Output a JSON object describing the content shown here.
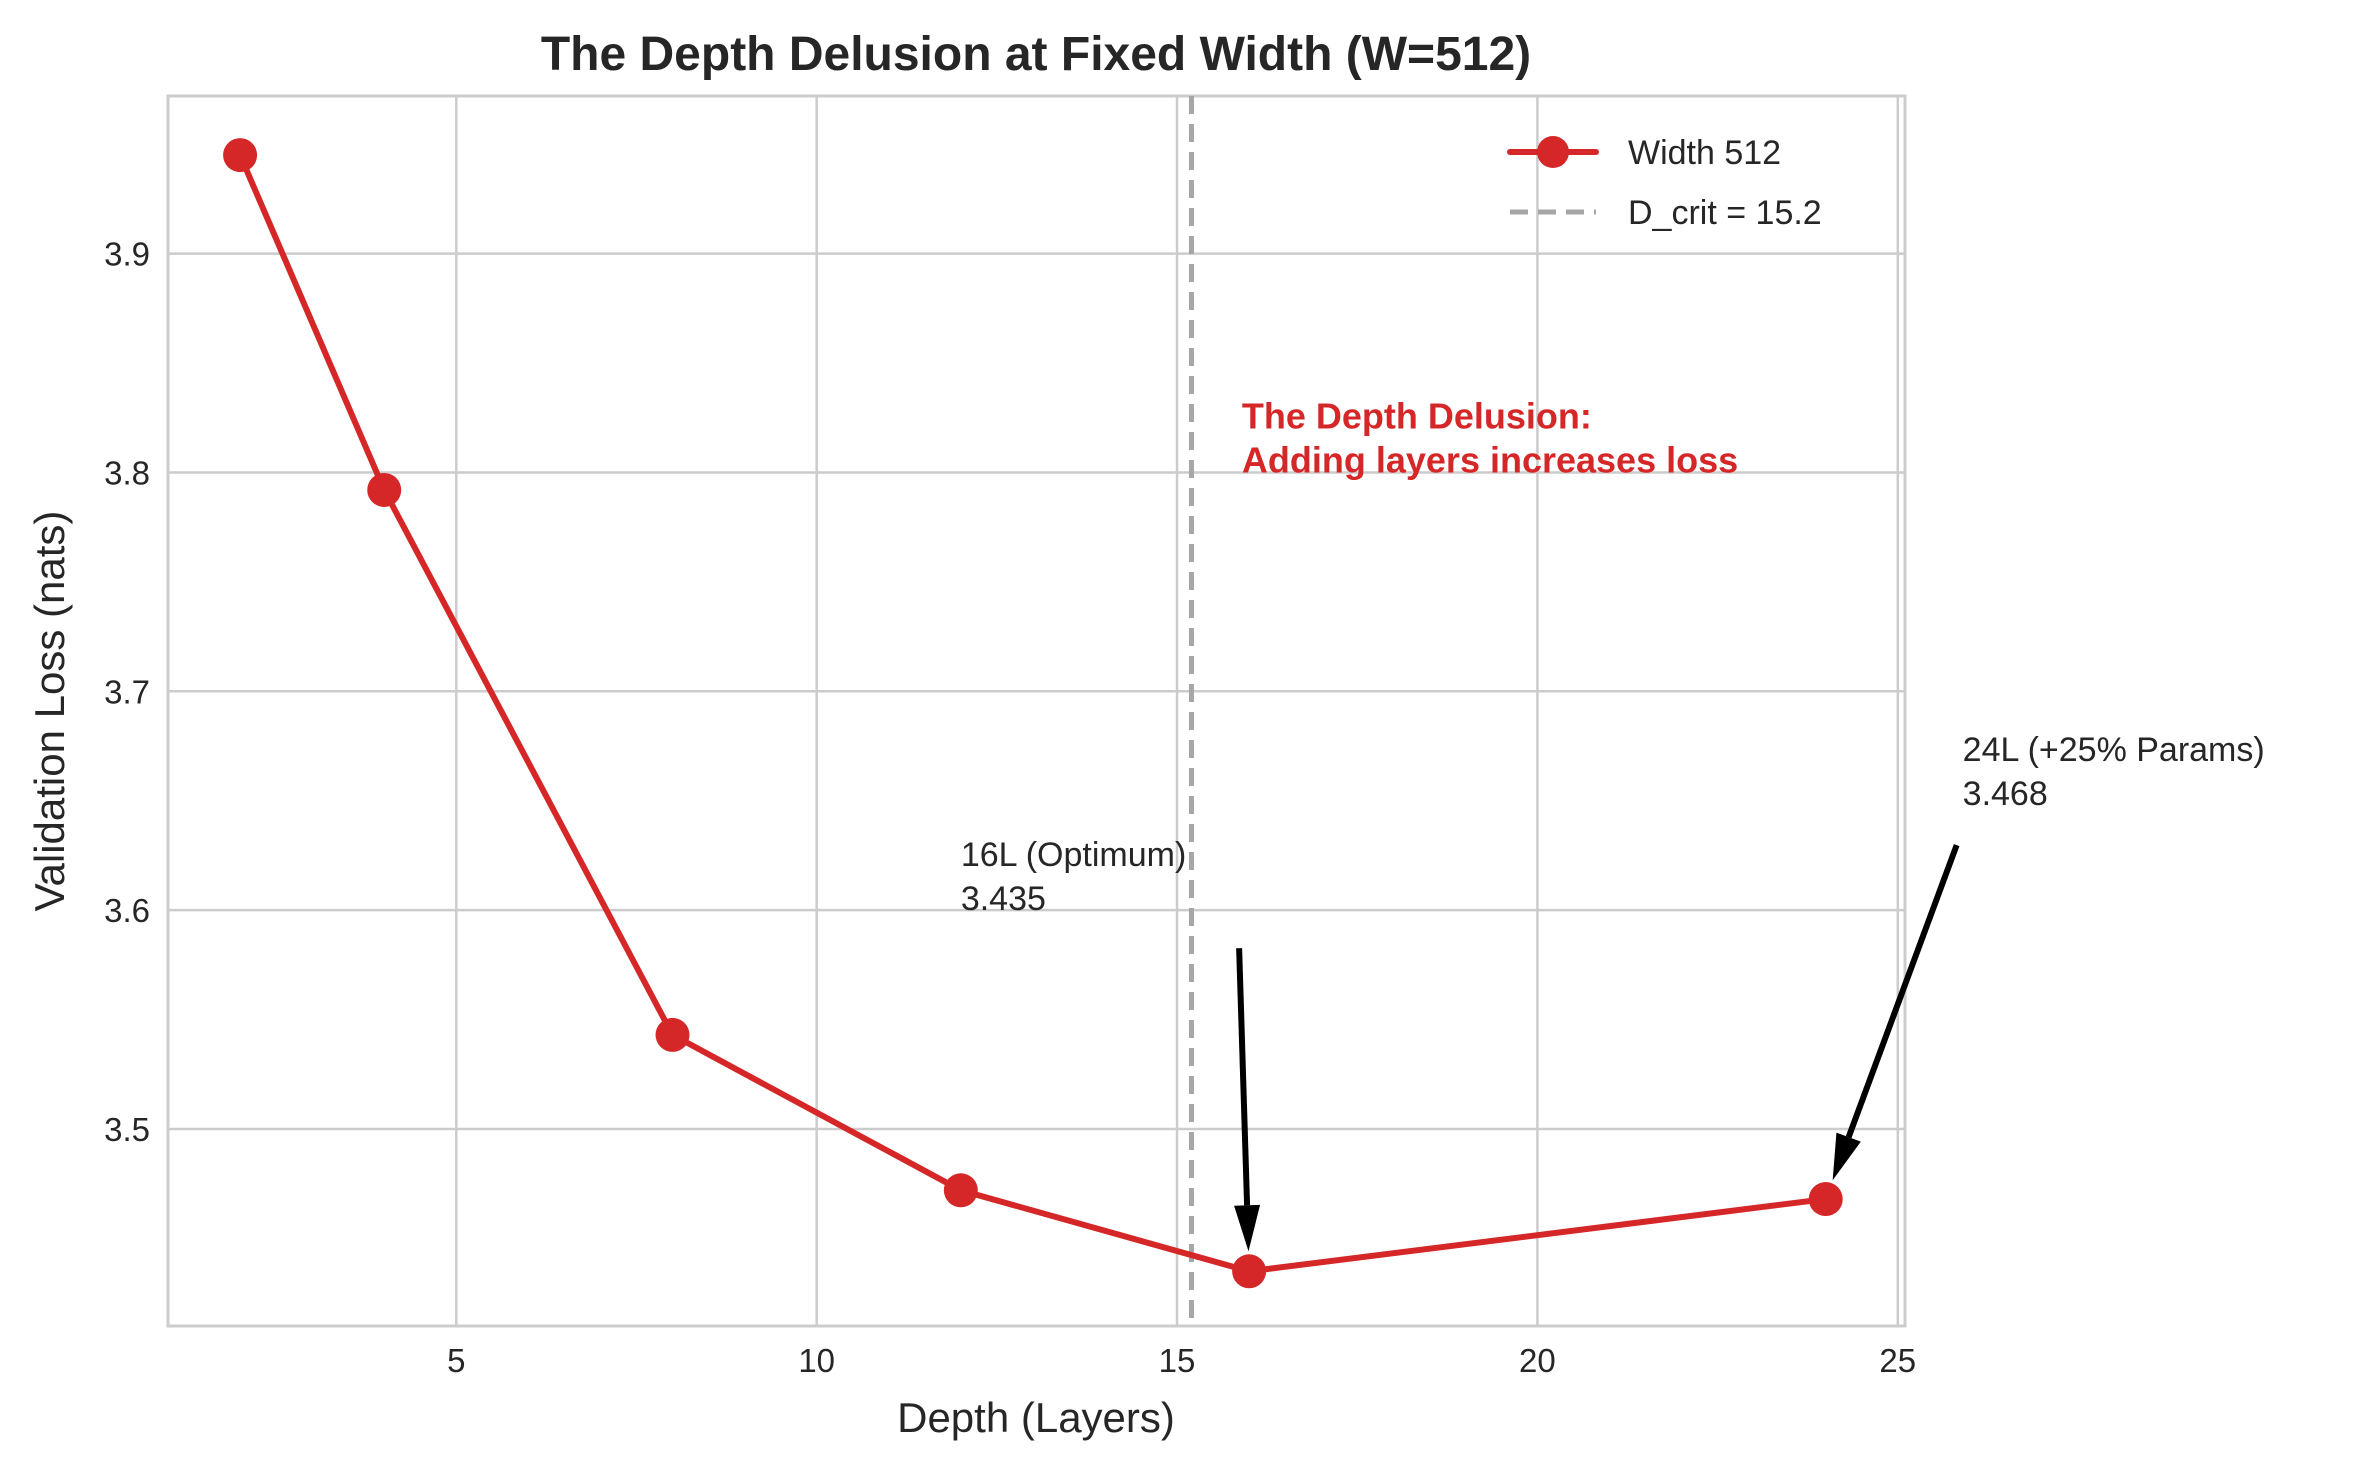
{
  "chart_data": {
    "type": "line",
    "title": "The Depth Delusion at Fixed Width (W=512)",
    "xlabel": "Depth (Layers)",
    "ylabel": "Validation Loss (nats)",
    "xlim": [
      1.0,
      25.1
    ],
    "ylim": [
      3.41,
      3.972
    ],
    "xticks": [
      5,
      10,
      15,
      20,
      25
    ],
    "yticks": [
      3.5,
      3.6,
      3.7,
      3.8,
      3.9
    ],
    "grid": true,
    "legend_position": "top-right",
    "series": [
      {
        "name": "Width 512",
        "color": "#d62728",
        "x": [
          2,
          4,
          8,
          12,
          16,
          24
        ],
        "y": [
          3.945,
          3.792,
          3.543,
          3.472,
          3.435,
          3.468
        ]
      }
    ],
    "reference_lines": [
      {
        "orientation": "vertical",
        "x": 15.2,
        "label": "D_crit = 15.2",
        "color": "#a6a6a6",
        "style": "dashed"
      }
    ],
    "annotations": [
      {
        "lines": [
          "16L (Optimum)",
          "3.435"
        ],
        "text_x": 12.0,
        "text_y": 3.6,
        "target_x": 16,
        "target_y": 3.435
      },
      {
        "lines": [
          "24L (+25% Params)",
          "3.468"
        ],
        "text_x": 25.9,
        "text_y": 3.648,
        "target_x": 24,
        "target_y": 3.468
      }
    ],
    "callout": {
      "lines": [
        "The Depth Delusion:",
        "Adding layers increases loss"
      ],
      "x": 15.9,
      "y": 3.8,
      "color": "#d62728"
    }
  }
}
